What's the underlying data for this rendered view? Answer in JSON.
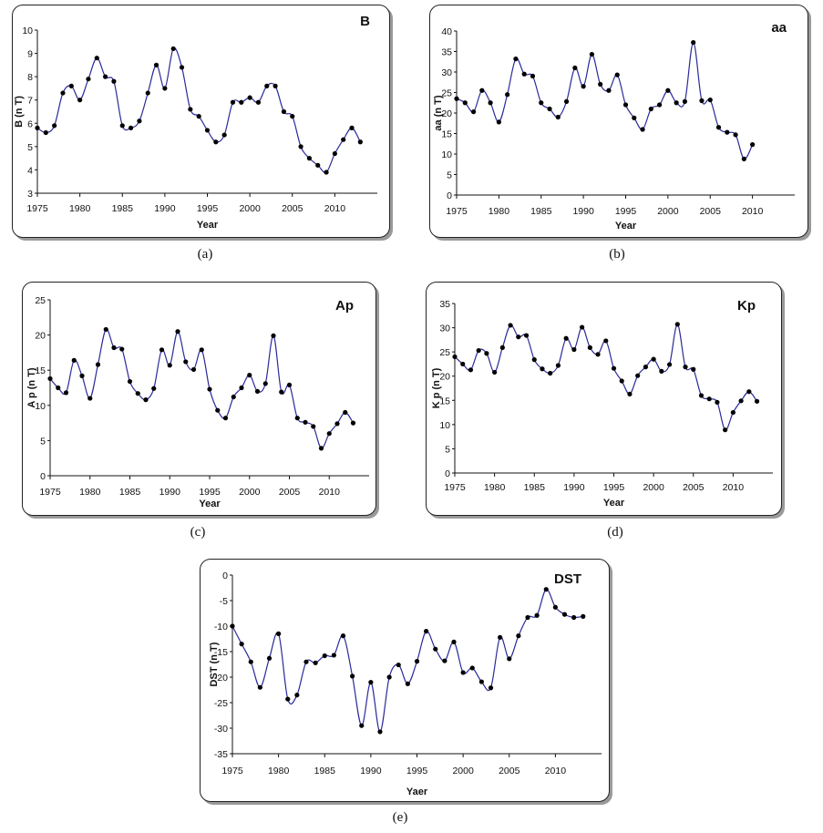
{
  "captions": [
    "(a)",
    "(b)",
    "(c)",
    "(d)",
    "(e)"
  ],
  "chart_data": [
    {
      "type": "line",
      "title": "B",
      "xlabel": "Year",
      "ylabel": "B (n T)",
      "xlim": [
        1975,
        2015
      ],
      "xticks": [
        1975,
        1980,
        1985,
        1990,
        1995,
        2000,
        2005,
        2010
      ],
      "ylim": [
        3,
        10
      ],
      "yticks": [
        3,
        4,
        5,
        6,
        7,
        8,
        9,
        10
      ],
      "x": [
        1975,
        1976,
        1977,
        1978,
        1979,
        1980,
        1981,
        1982,
        1983,
        1984,
        1985,
        1986,
        1987,
        1988,
        1989,
        1990,
        1991,
        1992,
        1993,
        1994,
        1995,
        1996,
        1997,
        1998,
        1999,
        2000,
        2001,
        2002,
        2003,
        2004,
        2005,
        2006,
        2007,
        2008,
        2009,
        2010,
        2011,
        2012,
        2013
      ],
      "values": [
        5.8,
        5.6,
        5.9,
        7.3,
        7.6,
        7.0,
        7.9,
        8.8,
        8.0,
        7.8,
        5.9,
        5.8,
        6.1,
        7.3,
        8.5,
        7.5,
        9.2,
        8.4,
        6.6,
        6.3,
        5.7,
        5.2,
        5.5,
        6.9,
        6.9,
        7.1,
        6.9,
        7.6,
        7.6,
        6.5,
        6.3,
        5.0,
        4.5,
        4.2,
        3.9,
        4.7,
        5.3,
        5.8,
        5.2
      ]
    },
    {
      "type": "line",
      "title": "aa",
      "xlabel": "Year",
      "ylabel": "aa (n T)",
      "xlim": [
        1975,
        2015
      ],
      "xticks": [
        1975,
        1980,
        1985,
        1990,
        1995,
        2000,
        2005,
        2010
      ],
      "ylim": [
        0,
        40
      ],
      "yticks": [
        0,
        5,
        10,
        15,
        20,
        25,
        30,
        35,
        40
      ],
      "x": [
        1975,
        1976,
        1977,
        1978,
        1979,
        1980,
        1981,
        1982,
        1983,
        1984,
        1985,
        1986,
        1987,
        1988,
        1989,
        1990,
        1991,
        1992,
        1993,
        1994,
        1995,
        1996,
        1997,
        1998,
        1999,
        2000,
        2001,
        2002,
        2003,
        2004,
        2005,
        2006,
        2007,
        2008,
        2009,
        2010
      ],
      "values": [
        23.5,
        22.5,
        20.3,
        25.5,
        22.5,
        17.8,
        24.5,
        33.2,
        29.5,
        29.0,
        22.5,
        21.0,
        19.0,
        22.8,
        31.0,
        26.5,
        34.3,
        27.0,
        25.5,
        29.3,
        22.0,
        18.8,
        16.0,
        21.0,
        22.0,
        25.5,
        22.5,
        22.8,
        37.2,
        23.0,
        23.2,
        16.5,
        15.3,
        14.7,
        8.8,
        12.3
      ]
    },
    {
      "type": "line",
      "title": "Ap",
      "xlabel": "Year",
      "ylabel": "A p (n T)",
      "xlim": [
        1975,
        2015
      ],
      "xticks": [
        1975,
        1980,
        1985,
        1990,
        1995,
        2000,
        2005,
        2010
      ],
      "ylim": [
        0,
        25
      ],
      "yticks": [
        0,
        5,
        10,
        15,
        20,
        25
      ],
      "x": [
        1975,
        1976,
        1977,
        1978,
        1979,
        1980,
        1981,
        1982,
        1983,
        1984,
        1985,
        1986,
        1987,
        1988,
        1989,
        1990,
        1991,
        1992,
        1993,
        1994,
        1995,
        1996,
        1997,
        1998,
        1999,
        2000,
        2001,
        2002,
        2003,
        2004,
        2005,
        2006,
        2007,
        2008,
        2009,
        2010,
        2011,
        2012,
        2013
      ],
      "values": [
        13.8,
        12.5,
        11.8,
        16.4,
        14.2,
        11.0,
        15.8,
        20.8,
        18.2,
        18.0,
        13.4,
        11.7,
        10.8,
        12.4,
        17.9,
        15.7,
        20.5,
        16.2,
        15.1,
        17.9,
        12.3,
        9.3,
        8.2,
        11.2,
        12.5,
        14.3,
        12.0,
        13.1,
        19.9,
        11.9,
        12.9,
        8.2,
        7.6,
        7.0,
        3.9,
        6.0,
        7.4,
        9.0,
        7.5
      ]
    },
    {
      "type": "line",
      "title": "Kp",
      "xlabel": "Year",
      "ylabel": "K p (n T)",
      "xlim": [
        1975,
        2015
      ],
      "xticks": [
        1975,
        1980,
        1985,
        1990,
        1995,
        2000,
        2005,
        2010
      ],
      "ylim": [
        0,
        35
      ],
      "yticks": [
        0,
        5,
        10,
        15,
        20,
        25,
        30,
        35
      ],
      "x": [
        1975,
        1976,
        1977,
        1978,
        1979,
        1980,
        1981,
        1982,
        1983,
        1984,
        1985,
        1986,
        1987,
        1988,
        1989,
        1990,
        1991,
        1992,
        1993,
        1994,
        1995,
        1996,
        1997,
        1998,
        1999,
        2000,
        2001,
        2002,
        2003,
        2004,
        2005,
        2006,
        2007,
        2008,
        2009,
        2010,
        2011,
        2012,
        2013
      ],
      "values": [
        24.0,
        22.5,
        21.3,
        25.3,
        24.7,
        20.8,
        25.9,
        30.5,
        28.1,
        28.4,
        23.4,
        21.5,
        20.6,
        22.2,
        27.8,
        25.5,
        30.1,
        25.9,
        24.5,
        27.3,
        21.6,
        19.0,
        16.3,
        20.1,
        21.9,
        23.5,
        21.0,
        22.4,
        30.7,
        21.9,
        21.4,
        16.0,
        15.3,
        14.6,
        8.9,
        12.5,
        14.9,
        16.8,
        14.8
      ]
    },
    {
      "type": "line",
      "title": "DST",
      "xlabel": "Yaer",
      "ylabel": "DST (n T)",
      "xlim": [
        1975,
        2015
      ],
      "xticks": [
        1975,
        1980,
        1985,
        1990,
        1995,
        2000,
        2005,
        2010
      ],
      "ylim": [
        -35,
        0
      ],
      "yticks": [
        0,
        -5,
        -10,
        -15,
        -20,
        -25,
        -30,
        -35
      ],
      "x": [
        1975,
        1976,
        1977,
        1978,
        1979,
        1980,
        1981,
        1982,
        1983,
        1984,
        1985,
        1986,
        1987,
        1988,
        1989,
        1990,
        1991,
        1992,
        1993,
        1994,
        1995,
        1996,
        1997,
        1998,
        1999,
        2000,
        2001,
        2002,
        2003,
        2004,
        2005,
        2006,
        2007,
        2008,
        2009,
        2010,
        2011,
        2012,
        2013
      ],
      "values": [
        -10.0,
        -13.5,
        -17.0,
        -22.0,
        -16.3,
        -11.5,
        -24.3,
        -23.5,
        -17.0,
        -17.2,
        -15.8,
        -15.7,
        -11.9,
        -19.8,
        -29.5,
        -21.0,
        -30.7,
        -20.0,
        -17.6,
        -21.3,
        -16.9,
        -11.0,
        -14.5,
        -16.8,
        -13.1,
        -19.1,
        -18.2,
        -20.9,
        -22.1,
        -12.2,
        -16.4,
        -11.9,
        -8.3,
        -7.9,
        -2.8,
        -6.3,
        -7.7,
        -8.3,
        -8.1
      ]
    }
  ]
}
